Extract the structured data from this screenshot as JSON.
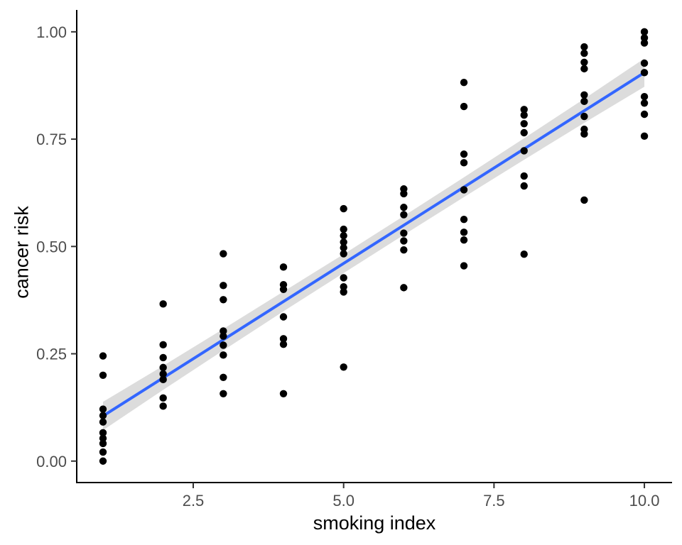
{
  "chart_data": {
    "type": "scatter",
    "title": "",
    "xlabel": "smoking index",
    "ylabel": "cancer risk",
    "xlim": [
      0.563,
      10.46
    ],
    "ylim": [
      -0.05,
      1.051
    ],
    "grid": false,
    "legend_position": "none",
    "x_ticks": {
      "values": [
        2.5,
        5.0,
        7.5,
        10.0
      ],
      "labels": [
        "2.5",
        "5.0",
        "7.5",
        "10.0"
      ]
    },
    "y_ticks": {
      "values": [
        0.0,
        0.25,
        0.5,
        0.75,
        1.0
      ],
      "labels": [
        "0.00",
        "0.25",
        "0.50",
        "0.75",
        "1.00"
      ]
    },
    "points": [
      [
        1,
        0.245
      ],
      [
        1,
        0.2
      ],
      [
        1,
        0.121
      ],
      [
        1,
        0.106
      ],
      [
        1,
        0.091
      ],
      [
        1,
        0.066
      ],
      [
        1,
        0.053
      ],
      [
        1,
        0.041
      ],
      [
        1,
        0.021
      ],
      [
        1,
        0.0
      ],
      [
        2,
        0.366
      ],
      [
        2,
        0.271
      ],
      [
        2,
        0.241
      ],
      [
        2,
        0.218
      ],
      [
        2,
        0.203
      ],
      [
        2,
        0.19
      ],
      [
        2,
        0.147
      ],
      [
        2,
        0.128
      ],
      [
        3,
        0.483
      ],
      [
        3,
        0.409
      ],
      [
        3,
        0.376
      ],
      [
        3,
        0.303
      ],
      [
        3,
        0.291
      ],
      [
        3,
        0.27
      ],
      [
        3,
        0.247
      ],
      [
        3,
        0.195
      ],
      [
        3,
        0.157
      ],
      [
        4,
        0.452
      ],
      [
        4,
        0.411
      ],
      [
        4,
        0.4
      ],
      [
        4,
        0.336
      ],
      [
        4,
        0.285
      ],
      [
        4,
        0.272
      ],
      [
        4,
        0.157
      ],
      [
        5,
        0.588
      ],
      [
        5,
        0.54
      ],
      [
        5,
        0.525
      ],
      [
        5,
        0.51
      ],
      [
        5,
        0.497
      ],
      [
        5,
        0.483
      ],
      [
        5,
        0.427
      ],
      [
        5,
        0.406
      ],
      [
        5,
        0.394
      ],
      [
        5,
        0.219
      ],
      [
        6,
        0.634
      ],
      [
        6,
        0.623
      ],
      [
        6,
        0.591
      ],
      [
        6,
        0.574
      ],
      [
        6,
        0.531
      ],
      [
        6,
        0.513
      ],
      [
        6,
        0.492
      ],
      [
        6,
        0.404
      ],
      [
        7,
        0.882
      ],
      [
        7,
        0.826
      ],
      [
        7,
        0.715
      ],
      [
        7,
        0.695
      ],
      [
        7,
        0.632
      ],
      [
        7,
        0.563
      ],
      [
        7,
        0.533
      ],
      [
        7,
        0.515
      ],
      [
        7,
        0.455
      ],
      [
        8,
        0.819
      ],
      [
        8,
        0.806
      ],
      [
        8,
        0.786
      ],
      [
        8,
        0.765
      ],
      [
        8,
        0.723
      ],
      [
        8,
        0.664
      ],
      [
        8,
        0.641
      ],
      [
        8,
        0.482
      ],
      [
        9,
        0.965
      ],
      [
        9,
        0.95
      ],
      [
        9,
        0.929
      ],
      [
        9,
        0.914
      ],
      [
        9,
        0.853
      ],
      [
        9,
        0.838
      ],
      [
        9,
        0.803
      ],
      [
        9,
        0.773
      ],
      [
        9,
        0.762
      ],
      [
        9,
        0.608
      ],
      [
        10,
        1.0
      ],
      [
        10,
        0.986
      ],
      [
        10,
        0.974
      ],
      [
        10,
        0.927
      ],
      [
        10,
        0.905
      ],
      [
        10,
        0.849
      ],
      [
        10,
        0.834
      ],
      [
        10,
        0.808
      ],
      [
        10,
        0.757
      ]
    ],
    "regression_line": {
      "x": [
        1,
        10
      ],
      "y": [
        0.105,
        0.905
      ]
    },
    "confidence_band": {
      "x": [
        1,
        2,
        3,
        4,
        5,
        6,
        7,
        8,
        9,
        10
      ],
      "upper": [
        0.138,
        0.222,
        0.308,
        0.395,
        0.482,
        0.571,
        0.661,
        0.752,
        0.844,
        0.938
      ],
      "lower": [
        0.072,
        0.166,
        0.258,
        0.349,
        0.438,
        0.527,
        0.615,
        0.702,
        0.788,
        0.872
      ]
    },
    "colors": {
      "point": "#000000",
      "line": "#3366FF",
      "band": "#DCDCDC",
      "axis": "#000000",
      "tick": "#333333",
      "tick_label": "#4d4d4d",
      "background": "#FFFFFF"
    }
  }
}
